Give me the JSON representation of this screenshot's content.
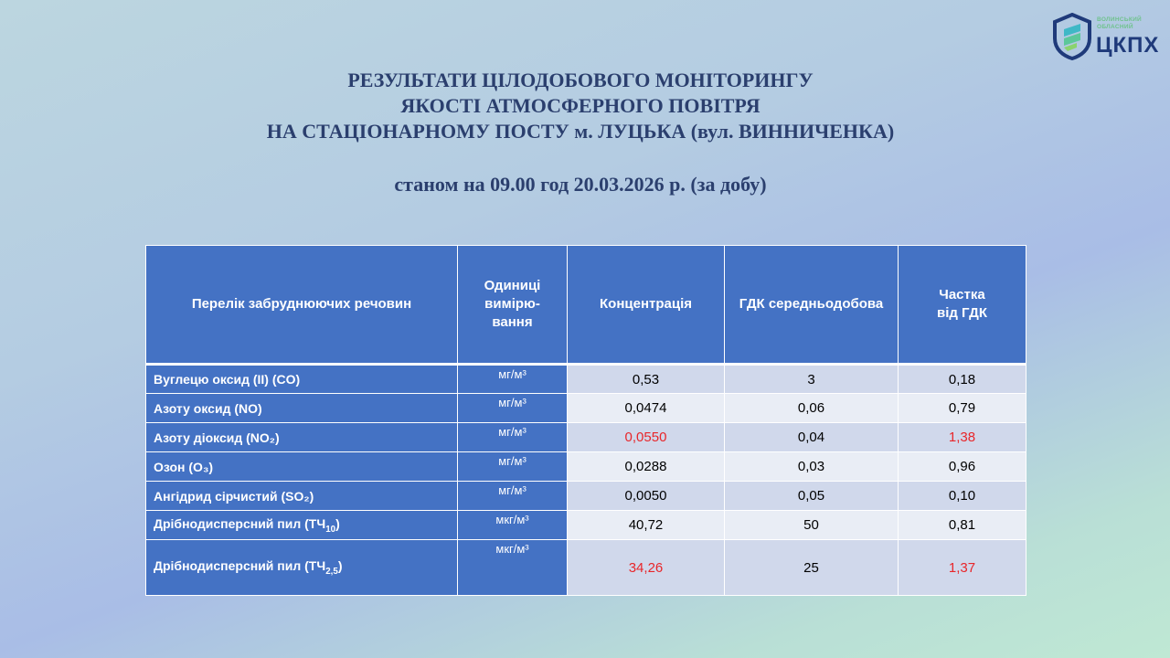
{
  "logo": {
    "line1": "Волинський",
    "line2": "обласний",
    "name": "ЦКПХ"
  },
  "title": {
    "line1": "РЕЗУЛЬТАТИ ЦІЛОДОБОВОГО МОНІТОРИНГУ",
    "line2": "ЯКОСТІ АТМОСФЕРНОГО ПОВІТРЯ",
    "line3": "НА СТАЦІОНАРНОМУ ПОСТУ м. ЛУЦЬКА (вул. ВИННИЧЕНКА)",
    "subtitle": "станом на 09.00 год 20.03.2026 р. (за добу)"
  },
  "table": {
    "headers": {
      "pollutant": "Перелік забруднюючих речовин",
      "units_1": "Одиниці",
      "units_2": "вимірю-",
      "units_3": "вання",
      "concentration": "Концентрація",
      "mac": "ГДК середньодобова",
      "share_1": "Частка",
      "share_2": "від ГДК"
    },
    "rows": [
      {
        "name": "Вуглецю оксид (II) (CO)",
        "unit": "мг/м³",
        "conc": "0,53",
        "mac": "3",
        "share": "0,18"
      },
      {
        "name": "Азоту  оксид (NO)",
        "unit": "мг/м³",
        "conc": "0,0474",
        "mac": "0,06",
        "share": "0,79"
      },
      {
        "name": "Азоту  діоксид (NO₂)",
        "unit": "мг/м³",
        "conc": "0,0550",
        "mac": "0,04",
        "share": "1,38"
      },
      {
        "name": "Озон (O₃)",
        "unit": "мг/м³",
        "conc": "0,0288",
        "mac": "0,03",
        "share": "0,96"
      },
      {
        "name": "Ангідрид сірчистий  (SO₂)",
        "unit": "мг/м³",
        "conc": "0,0050",
        "mac": "0,05",
        "share": "0,10"
      },
      {
        "name_base": "Дрібнодисперсний пил (ТЧ",
        "name_sub": "10",
        "name_end": ")",
        "unit": "мкг/м³",
        "conc": "40,72",
        "mac": "50",
        "share": "0,81"
      },
      {
        "name_base": "Дрібнодисперсний пил (ТЧ",
        "name_sub": "2,5",
        "name_end": ")",
        "unit": "мкг/м³",
        "conc": "34,26",
        "mac": "25",
        "share": "1,37"
      }
    ]
  },
  "colors": {
    "header_blue": "#4472c4",
    "title_navy": "#2b3f6e",
    "exceeded_red": "#e8262a"
  }
}
